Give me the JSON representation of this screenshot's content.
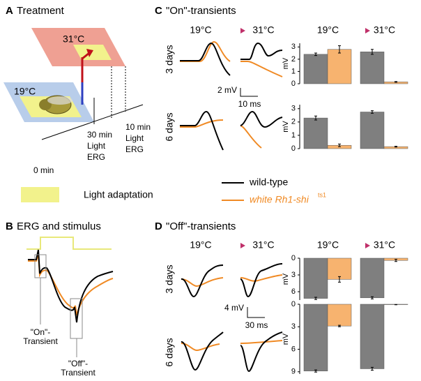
{
  "panels": {
    "a": {
      "letter": "A",
      "title": "Treatment",
      "high_temp": "31°C",
      "low_temp": "19°C",
      "times": [
        [
          "0 min"
        ],
        [
          "30 min",
          "Light",
          "ERG"
        ],
        [
          "10 min",
          "Light",
          "ERG"
        ]
      ]
    },
    "legend": {
      "light": "Light adaptation"
    },
    "b": {
      "letter": "B",
      "title": "ERG and stimulus",
      "on_label": [
        "\"On\"-",
        "Transient"
      ],
      "off_label": [
        "\"Off\"-",
        "Transient"
      ]
    },
    "c": {
      "letter": "C",
      "title": "\"On\"-transients",
      "conditions": [
        "19°C",
        "31°C"
      ],
      "rows": [
        "3 days",
        "6 days"
      ],
      "scale": {
        "y": "2 mV",
        "x": "10 ms"
      }
    },
    "d": {
      "letter": "D",
      "title": "\"Off\"-transients",
      "conditions": [
        "19°C",
        "31°C"
      ],
      "rows": [
        "3 days",
        "6 days"
      ],
      "scale": {
        "y": "4 mV",
        "x": "30 ms"
      }
    }
  },
  "chart_data": [
    {
      "type": "bar",
      "categories": [
        "19°C",
        "31°C"
      ],
      "ylabel": "mV",
      "ylim": [
        0,
        3.3
      ],
      "yticks": [
        0,
        1,
        2,
        3
      ],
      "series": [
        {
          "name": "wild-type",
          "color": "#7f7f7f",
          "values": [
            2.4,
            2.6
          ],
          "errors": [
            0.1,
            0.2
          ]
        },
        {
          "name": "white Rh1-shi",
          "superscript": "ts1",
          "color": "#f7b36f",
          "values": [
            2.8,
            0.15
          ],
          "errors": [
            0.3,
            0.03
          ]
        }
      ]
    },
    {
      "type": "bar",
      "categories": [
        null,
        null
      ],
      "ylabel": "mV",
      "ylim": [
        0,
        3.3
      ],
      "yticks": [
        0,
        1,
        2,
        3
      ],
      "series": [
        {
          "color": "#7f7f7f",
          "values": [
            2.3,
            2.75
          ],
          "errors": [
            0.15,
            0.1
          ]
        },
        {
          "color": "#f7b36f",
          "values": [
            0.25,
            0.15
          ],
          "errors": [
            0.1,
            0.03
          ]
        }
      ]
    },
    {
      "type": "bar",
      "y_inverted": true,
      "categories": [
        "19°C",
        "31°C"
      ],
      "ylabel": "mV",
      "ylim": [
        0,
        7.5
      ],
      "yticks": [
        0,
        3,
        6
      ],
      "series": [
        {
          "color": "#7f7f7f",
          "values": [
            7.2,
            7.1
          ],
          "errors": [
            0.2,
            0.2
          ]
        },
        {
          "color": "#f7b36f",
          "values": [
            3.8,
            0.4
          ],
          "errors": [
            0.5,
            0.2
          ]
        }
      ]
    },
    {
      "type": "bar",
      "y_inverted": true,
      "categories": [
        null,
        null
      ],
      "ylabel": "mV",
      "ylim": [
        0,
        9.3
      ],
      "yticks": [
        0,
        3,
        6,
        9
      ],
      "series": [
        {
          "color": "#7f7f7f",
          "values": [
            8.9,
            8.6
          ],
          "errors": [
            0.15,
            0.2
          ]
        },
        {
          "color": "#f7b36f",
          "values": [
            2.9,
            0.05
          ],
          "errors": [
            0.1,
            0.02
          ]
        }
      ]
    }
  ]
}
